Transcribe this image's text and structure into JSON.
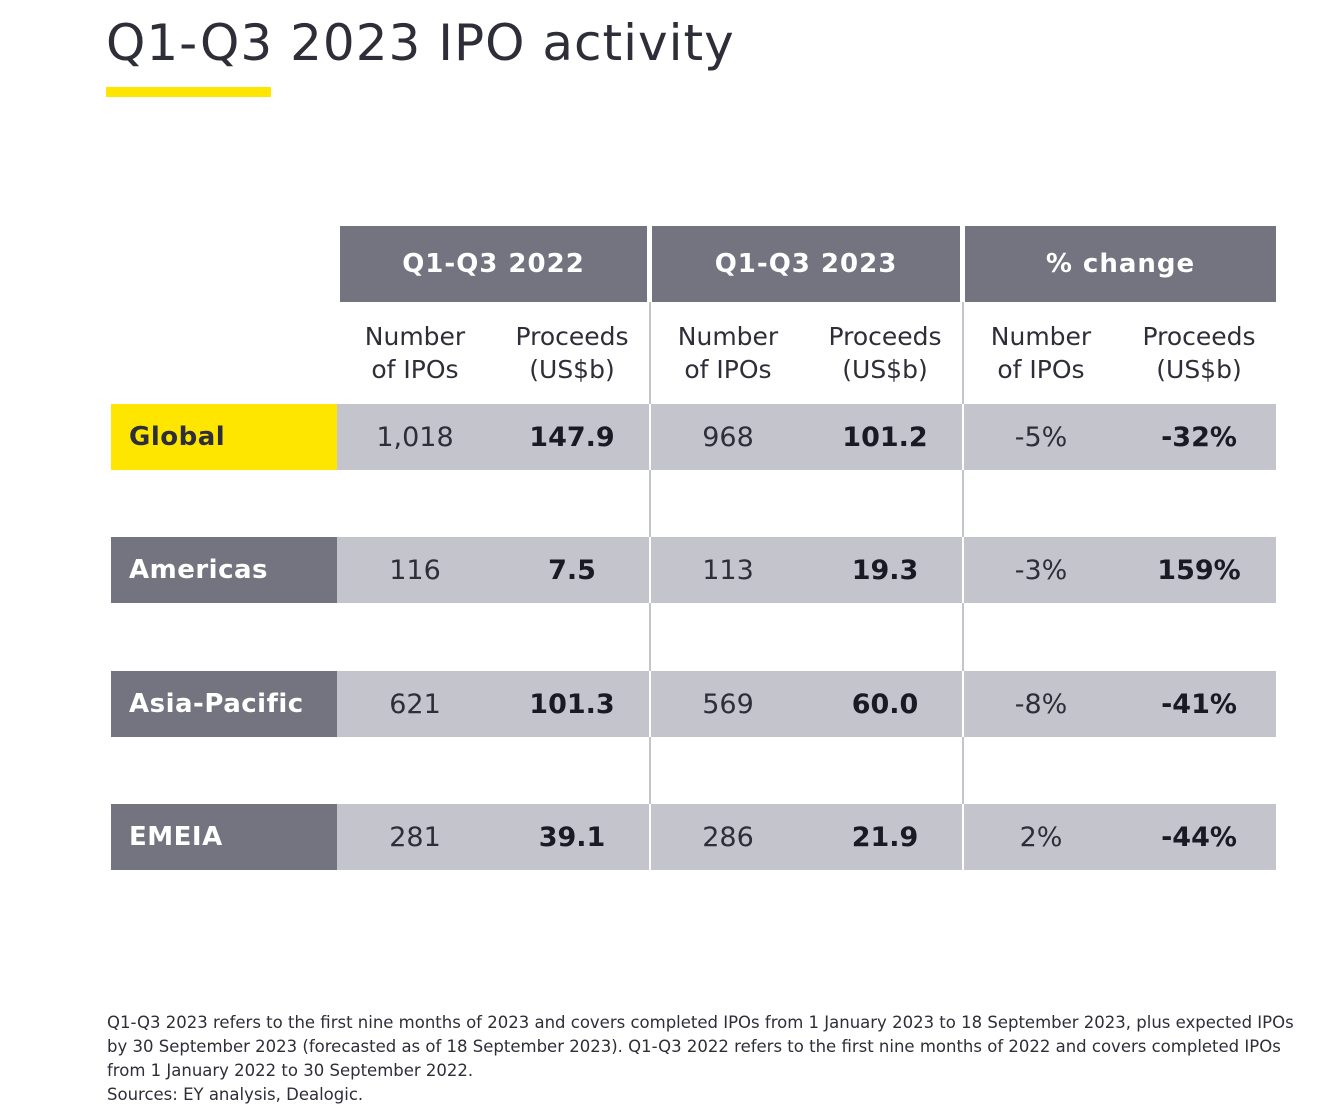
{
  "title": "Q1-Q3 2023 IPO activity",
  "colors": {
    "accent_yellow": "#ffe600",
    "header_gray": "#747480",
    "row_gray": "#c4c4cd",
    "text_dark": "#2e2e38"
  },
  "table": {
    "periods": [
      "Q1-Q3 2022",
      "Q1-Q3 2023",
      "% change"
    ],
    "subheaders": {
      "number_line1": "Number",
      "number_line2": "of IPOs",
      "proceeds_line1": "Proceeds",
      "proceeds_line2": "(US$b)"
    },
    "rows": [
      {
        "region": "Global",
        "values": [
          "1,018",
          "147.9",
          "968",
          "101.2",
          "-5%",
          "-32%"
        ]
      },
      {
        "region": "Americas",
        "values": [
          "116",
          "7.5",
          "113",
          "19.3",
          "-3%",
          "159%"
        ]
      },
      {
        "region": "Asia-Pacific",
        "values": [
          "621",
          "101.3",
          "569",
          "60.0",
          "-8%",
          "-41%"
        ]
      },
      {
        "region": "EMEIA",
        "values": [
          "281",
          "39.1",
          "286",
          "21.9",
          "2%",
          "-44%"
        ]
      }
    ]
  },
  "footnote": {
    "line1": "Q1-Q3 2023 refers to the first nine months of 2023 and covers completed IPOs from 1 January 2023 to 18 September 2023, plus expected IPOs by 30 September 2023 (forecasted as of 18 September 2023). Q1-Q3 2022 refers to the first nine months of 2022 and covers completed IPOs from 1 January 2022 to 30 September 2022.",
    "sources": "Sources: EY analysis, Dealogic."
  }
}
